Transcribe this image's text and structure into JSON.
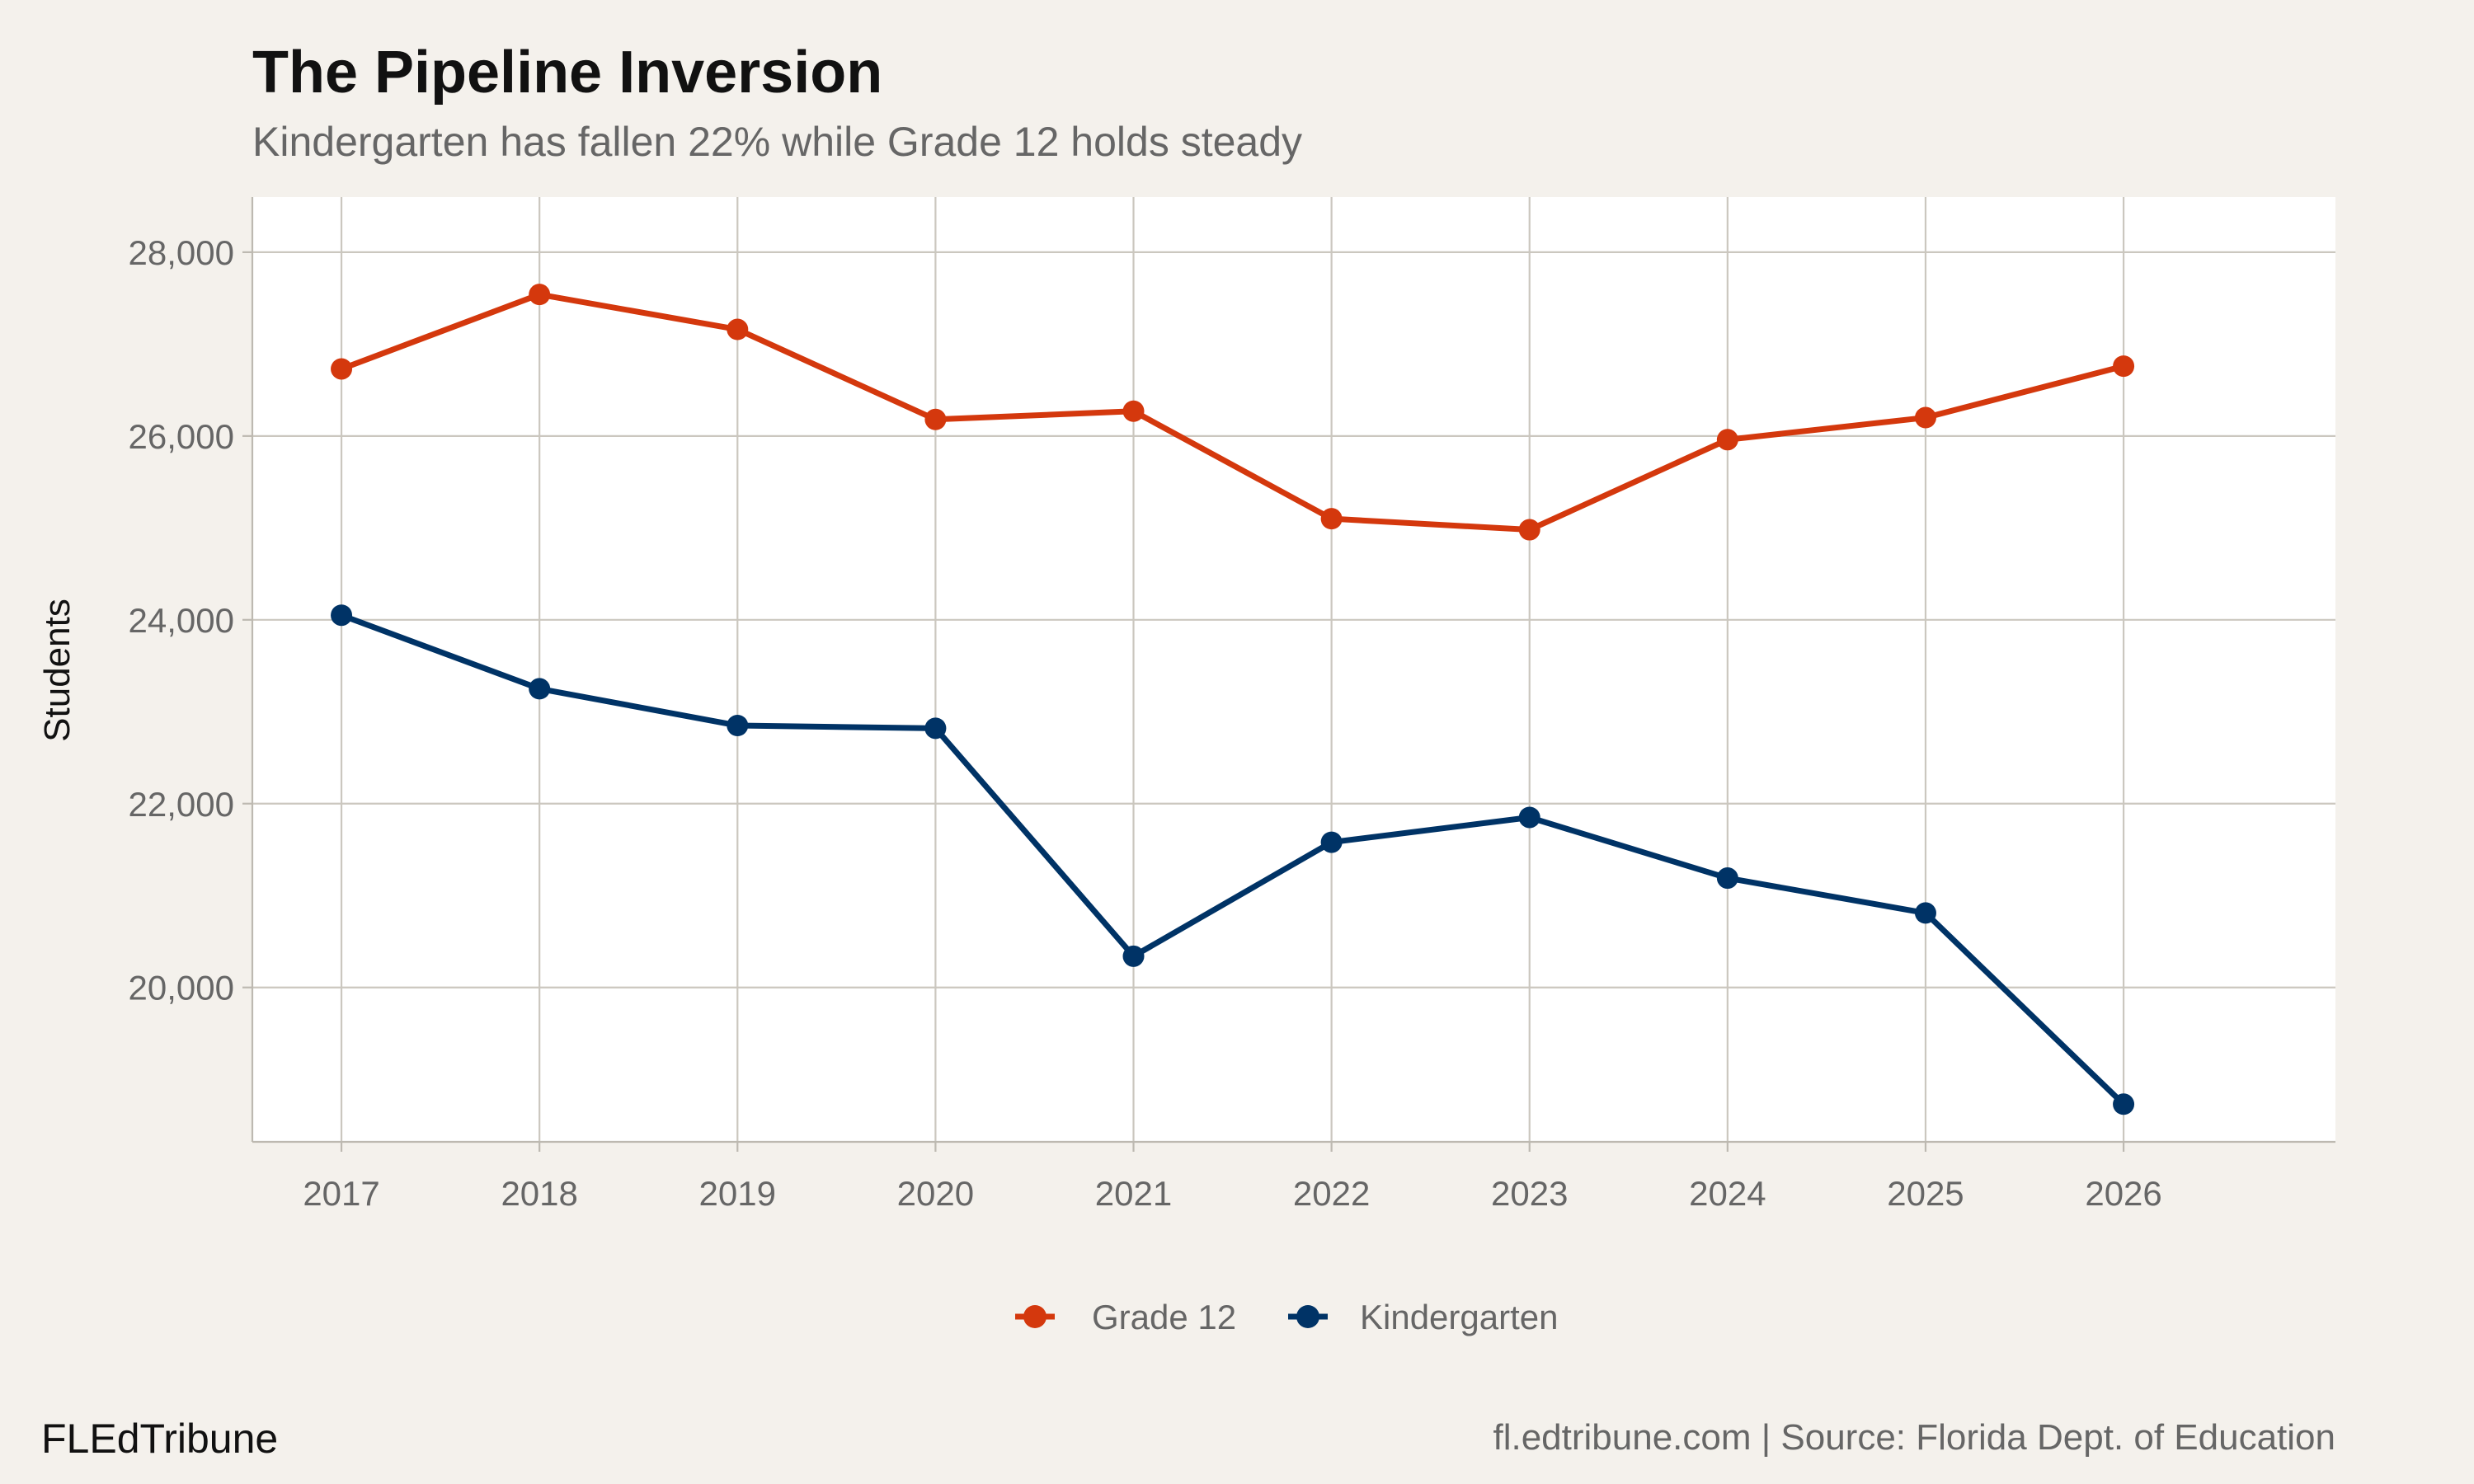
{
  "chart_data": {
    "type": "line",
    "title": "The Pipeline Inversion",
    "subtitle": "Kindergarten has fallen 22% while Grade 12 holds steady",
    "xlabel": "",
    "ylabel": "Students",
    "x": [
      2017,
      2018,
      2019,
      2020,
      2021,
      2022,
      2023,
      2024,
      2025,
      2026
    ],
    "x_tick_labels": [
      "2017",
      "2018",
      "2019",
      "2020",
      "2021",
      "2022",
      "2023",
      "2024",
      "2025",
      "2026"
    ],
    "y_ticks": [
      20000,
      22000,
      24000,
      26000,
      28000
    ],
    "y_tick_labels": [
      "20,000",
      "22,000",
      "24,000",
      "26,000",
      "28,000"
    ],
    "xlim": [
      2016.55,
      2027.07
    ],
    "ylim": [
      18320,
      28600
    ],
    "grid": true,
    "legend_position": "bottom",
    "series": [
      {
        "name": "Grade 12",
        "color": "#D4380D",
        "values": [
          26730,
          27540,
          27160,
          26180,
          26270,
          25100,
          24980,
          25960,
          26200,
          26760
        ]
      },
      {
        "name": "Kindergarten",
        "color": "#003366",
        "values": [
          24050,
          23250,
          22850,
          22820,
          20340,
          21580,
          21850,
          21190,
          20810,
          18730
        ]
      }
    ]
  },
  "footer": {
    "brand": "FLEdTribune",
    "source": "fl.edtribune.com | Source: Florida Dept. of Education"
  },
  "colors": {
    "background": "#F4F1EC",
    "panel": "#FFFFFF",
    "grid": "#CBC7BF"
  }
}
